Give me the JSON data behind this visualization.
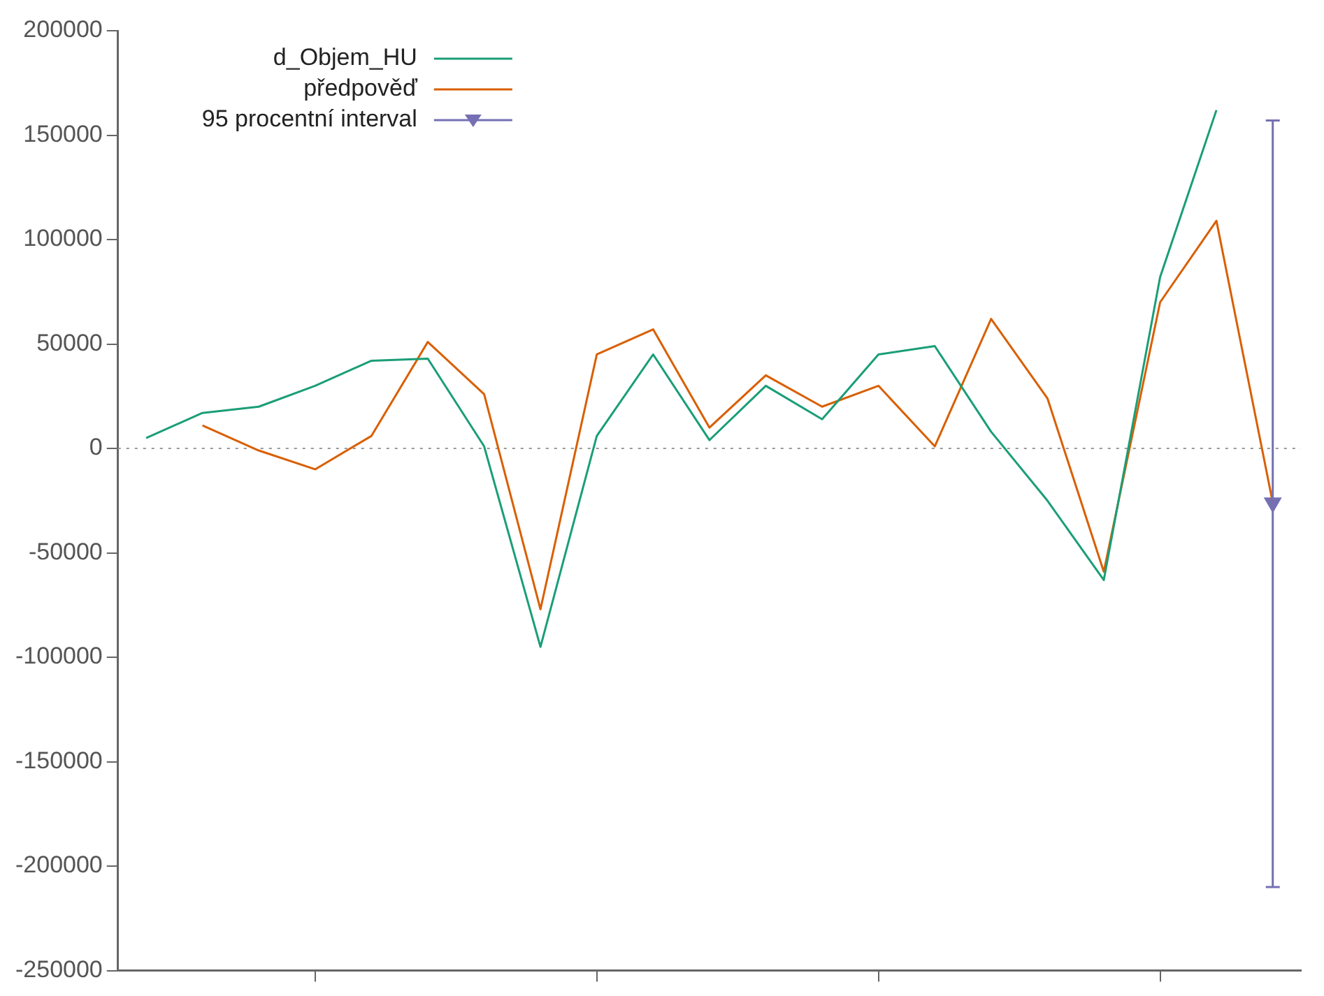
{
  "chart_data": {
    "type": "line",
    "categories": [
      null,
      null,
      null,
      null,
      null,
      null,
      null,
      null,
      null,
      null,
      null,
      null,
      null,
      null,
      null,
      null,
      null,
      null,
      null,
      null,
      null
    ],
    "series": [
      {
        "name": "d_Objem_HU",
        "color": "#1a9e77",
        "values": [
          5000,
          17000,
          20000,
          30000,
          42000,
          43000,
          1000,
          -95000,
          6000,
          45000,
          4000,
          30000,
          14000,
          45000,
          49000,
          8000,
          -25000,
          -63000,
          82000,
          162000,
          null
        ]
      },
      {
        "name": "předpověď",
        "color": "#d95f02",
        "values": [
          null,
          11000,
          -1000,
          -10000,
          6000,
          51000,
          26000,
          -77000,
          45000,
          57000,
          10000,
          35000,
          20000,
          30000,
          1000,
          62000,
          24000,
          -59000,
          70000,
          109000,
          -26000
        ]
      },
      {
        "name": "95 procentní interval",
        "type": "scatter",
        "marker": "triangle",
        "color": "#7570b3",
        "values": [
          null,
          null,
          null,
          null,
          null,
          null,
          null,
          null,
          null,
          null,
          null,
          null,
          null,
          null,
          null,
          null,
          null,
          null,
          null,
          null,
          -26000
        ],
        "errors": [
          null,
          null,
          null,
          null,
          null,
          null,
          null,
          null,
          null,
          null,
          null,
          null,
          null,
          null,
          null,
          null,
          null,
          null,
          null,
          null,
          [
            -210000,
            157000
          ]
        ]
      }
    ],
    "ylim": [
      -250000,
      200000
    ],
    "yticks": [
      -250000,
      -200000,
      -150000,
      -100000,
      -50000,
      0,
      50000,
      100000,
      150000,
      200000
    ],
    "ref_lines": [
      {
        "axis": "y",
        "value": 0,
        "color": "#999999",
        "line_style": "dotted"
      }
    ],
    "grid": false,
    "legend": "top left",
    "line_style": "solid",
    "marker": "none"
  }
}
